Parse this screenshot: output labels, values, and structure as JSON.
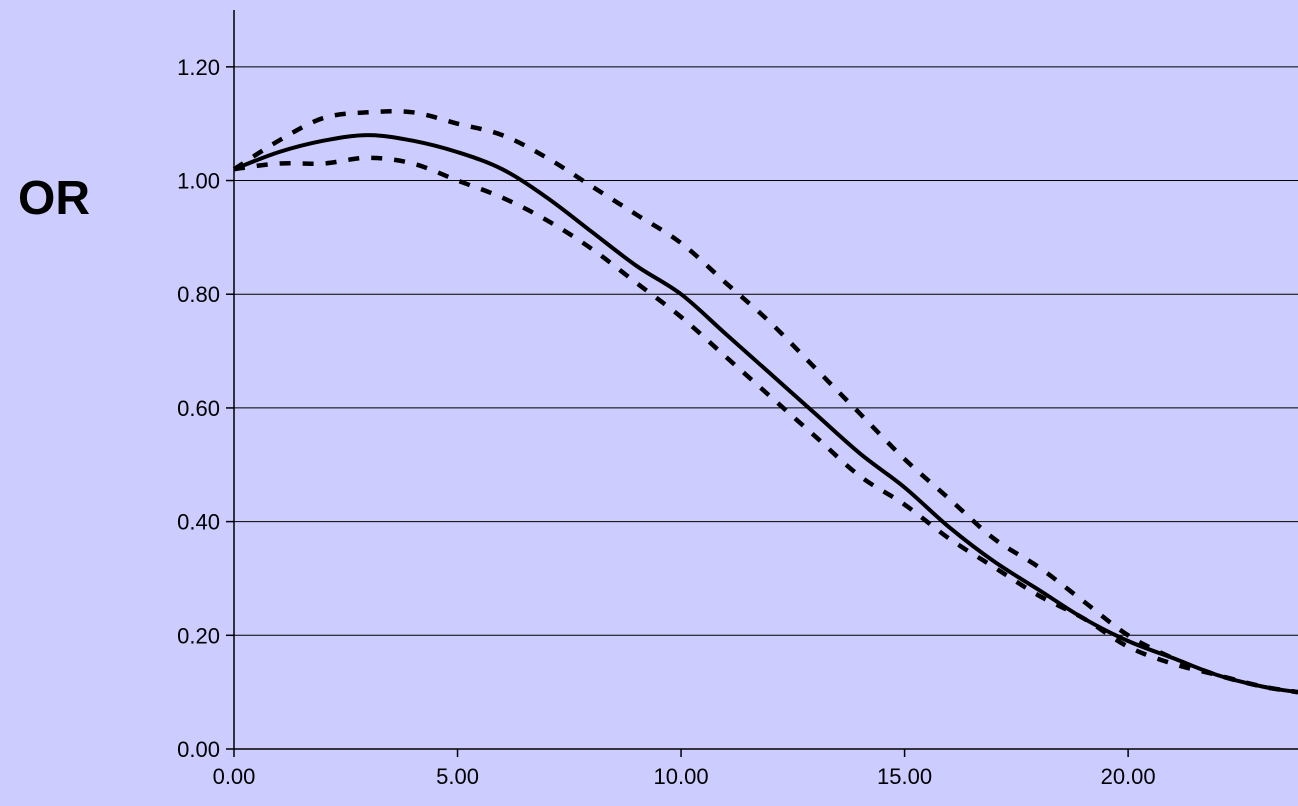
{
  "chart_data": {
    "type": "line",
    "title": "",
    "xlabel": "",
    "ylabel": "OR",
    "xlim": [
      0,
      23.8
    ],
    "ylim": [
      0,
      1.3
    ],
    "x_ticks": [
      "0.00",
      "5.00",
      "10.00",
      "15.00",
      "20.00"
    ],
    "y_ticks": [
      "0.00",
      "0.20",
      "0.40",
      "0.60",
      "0.80",
      "1.00",
      "1.20"
    ],
    "grid": "horizontal",
    "background": "#ccccff",
    "line_color": "#000000",
    "series": [
      {
        "style": "solid",
        "x": [
          0,
          1,
          2,
          3,
          4,
          5,
          6,
          7,
          8,
          9,
          10,
          11,
          12,
          13,
          14,
          15,
          16,
          17,
          18,
          19,
          20,
          21,
          22,
          23,
          23.8
        ],
        "y": [
          1.02,
          1.05,
          1.07,
          1.08,
          1.07,
          1.05,
          1.02,
          0.97,
          0.91,
          0.85,
          0.8,
          0.73,
          0.66,
          0.59,
          0.52,
          0.46,
          0.39,
          0.33,
          0.28,
          0.23,
          0.19,
          0.16,
          0.13,
          0.11,
          0.1
        ]
      },
      {
        "style": "dashed",
        "x": [
          0,
          1,
          2,
          3,
          4,
          5,
          6,
          7,
          8,
          9,
          10,
          11,
          12,
          13,
          14,
          15,
          16,
          17,
          18,
          19,
          20,
          21,
          22,
          23,
          23.8
        ],
        "y": [
          1.02,
          1.07,
          1.11,
          1.12,
          1.12,
          1.1,
          1.08,
          1.04,
          0.99,
          0.94,
          0.89,
          0.82,
          0.75,
          0.67,
          0.59,
          0.51,
          0.44,
          0.37,
          0.32,
          0.26,
          0.2,
          0.16,
          0.13,
          0.11,
          0.1
        ]
      },
      {
        "style": "dashed",
        "x": [
          0,
          1,
          2,
          3,
          4,
          5,
          6,
          7,
          8,
          9,
          10,
          11,
          12,
          13,
          14,
          15,
          16,
          17,
          18,
          19,
          20,
          21,
          22,
          23,
          23.8
        ],
        "y": [
          1.02,
          1.03,
          1.03,
          1.04,
          1.03,
          1.0,
          0.97,
          0.93,
          0.88,
          0.82,
          0.76,
          0.69,
          0.62,
          0.55,
          0.48,
          0.43,
          0.37,
          0.32,
          0.27,
          0.23,
          0.18,
          0.15,
          0.13,
          0.11,
          0.1
        ]
      }
    ]
  }
}
